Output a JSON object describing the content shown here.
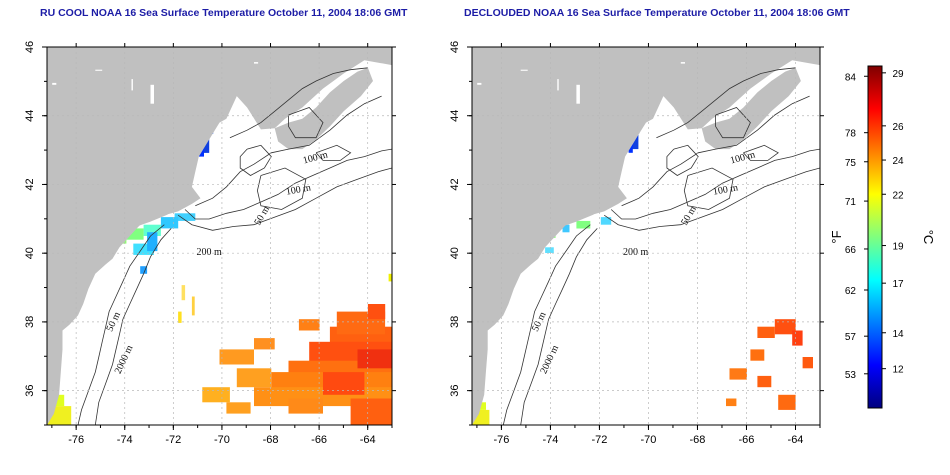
{
  "panels": [
    {
      "title": "RU COOL NOAA 16 Sea Surface Temperature October 11, 2004 18:06 GMT"
    },
    {
      "title": "DECLOUDED NOAA 16 Sea Surface Temperature October 11, 2004 18:06 GMT"
    }
  ],
  "map": {
    "lon_ticks": [
      -76,
      -74,
      -72,
      -70,
      -68,
      -66,
      -64
    ],
    "lat_ticks": [
      36,
      38,
      40,
      42,
      44,
      46
    ],
    "lon_range": [
      -77.2,
      -63.0
    ],
    "lat_range": [
      35.0,
      46.0
    ],
    "contour_labels": [
      "100 m",
      "100 m",
      "50 m",
      "200 m",
      "50 m",
      "2000 m"
    ],
    "colors": {
      "land": "#c0c0c0",
      "ocean": "#ffffff",
      "grid": "#b8b8b8",
      "contour": "#333333"
    }
  },
  "colorbar": {
    "fahrenheit_ticks": [
      "84",
      "78",
      "75",
      "71",
      "66",
      "62",
      "57",
      "53"
    ],
    "celsius_ticks": [
      "29",
      "26",
      "24",
      "22",
      "19",
      "17",
      "14",
      "12"
    ],
    "fahrenheit_label": "°F",
    "celsius_label": "°C",
    "colors": [
      "#00007f",
      "#0000ff",
      "#007fff",
      "#00ffff",
      "#7fff7f",
      "#ffff00",
      "#ff7f00",
      "#ff0000",
      "#7f0000"
    ]
  }
}
